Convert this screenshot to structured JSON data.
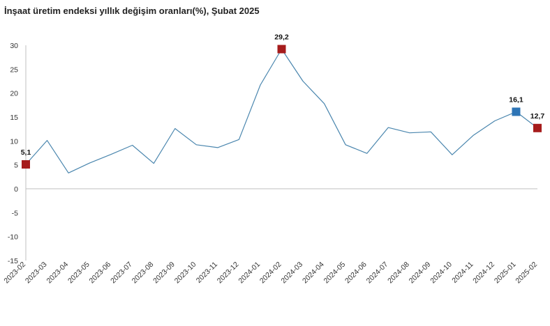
{
  "chart_data": {
    "type": "line",
    "title": "İnşaat üretim endeksi yıllık değişim oranları(%), Şubat 2025",
    "xlabel": "",
    "ylabel": "",
    "ylim": [
      -15,
      30
    ],
    "yticks": [
      30,
      25,
      20,
      15,
      10,
      5,
      0,
      -5,
      -10,
      -15
    ],
    "grid": false,
    "legend": "none",
    "categories": [
      "2023-02",
      "2023-03",
      "2023-04",
      "2023-05",
      "2023-06",
      "2023-07",
      "2023-08",
      "2023-09",
      "2023-10",
      "2023-11",
      "2023-12",
      "2024-01",
      "2024-02",
      "2024-03",
      "2024-04",
      "2024-05",
      "2024-06",
      "2024-07",
      "2024-08",
      "2024-09",
      "2024-10",
      "2024-11",
      "2024-12",
      "2025-01",
      "2025-02"
    ],
    "series": [
      {
        "values": [
          5.1,
          10.1,
          3.3,
          5.4,
          7.2,
          9.1,
          5.3,
          12.6,
          9.2,
          8.6,
          10.3,
          21.7,
          29.2,
          22.5,
          17.8,
          9.2,
          7.4,
          12.8,
          11.7,
          11.9,
          7.1,
          11.2,
          14.2,
          16.1,
          12.7
        ],
        "color": "#4a86ae"
      }
    ],
    "markers": [
      {
        "index": 0,
        "label": "5,1",
        "color": "#a61c1c"
      },
      {
        "index": 12,
        "label": "29,2",
        "color": "#a61c1c"
      },
      {
        "index": 23,
        "label": "16,1",
        "color": "#2e75b6"
      },
      {
        "index": 24,
        "label": "12,7",
        "color": "#a61c1c"
      }
    ]
  }
}
